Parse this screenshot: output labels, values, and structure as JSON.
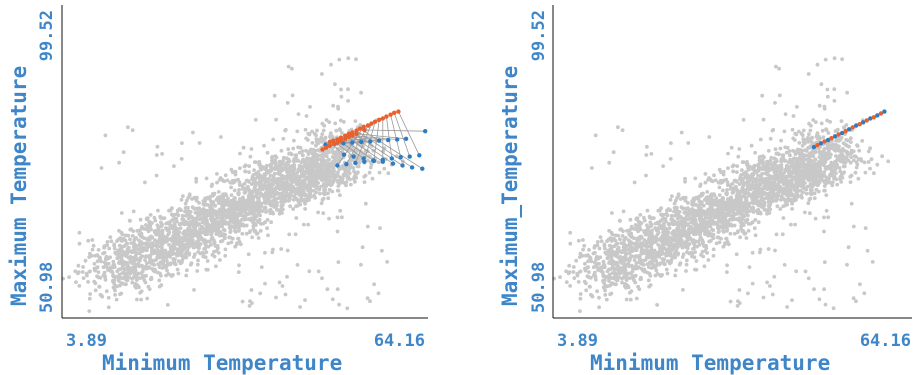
{
  "colors": {
    "background_points": "#c8c8c8",
    "original_points": "#2f7cc3",
    "moved_points": "#e8612c",
    "link_lines": "#9a9a9a",
    "label_text": "#3f86c9",
    "axis_line": "#111111"
  },
  "chart_data": [
    {
      "type": "scatter",
      "panel": "left",
      "xlabel": "Minimum Temperature",
      "ylabel": "Maximum Temperature",
      "x_ticks": [
        "3.89",
        "64.16"
      ],
      "y_ticks": [
        "50.98",
        "99.52"
      ],
      "xlim": [
        3.89,
        64.16
      ],
      "ylim": [
        50.98,
        99.52
      ],
      "grid": false,
      "background_series": {
        "name": "",
        "approx_count": 2500,
        "shape": "dense cloud along diagonal, x ~ 4-64, y ~ 51-99"
      },
      "highlight_pairs": [
        {
          "from": [
            50.6,
            76.4
          ],
          "to": [
            48.2,
            78.4
          ]
        },
        {
          "from": [
            52.2,
            76.1
          ],
          "to": [
            48.8,
            78.6
          ]
        },
        {
          "from": [
            53.9,
            75.8
          ],
          "to": [
            49.5,
            78.8
          ]
        },
        {
          "from": [
            55.5,
            75.5
          ],
          "to": [
            50.1,
            79.1
          ]
        },
        {
          "from": [
            57.1,
            75.3
          ],
          "to": [
            50.8,
            79.4
          ]
        },
        {
          "from": [
            58.8,
            75.0
          ],
          "to": [
            51.4,
            79.7
          ]
        },
        {
          "from": [
            60.4,
            74.7
          ],
          "to": [
            52.0,
            79.9
          ]
        },
        {
          "from": [
            62.0,
            74.4
          ],
          "to": [
            52.7,
            80.2
          ]
        },
        {
          "from": [
            63.7,
            74.2
          ],
          "to": [
            53.3,
            80.5
          ]
        },
        {
          "from": [
            49.5,
            74.7
          ],
          "to": [
            53.9,
            80.8
          ]
        },
        {
          "from": [
            51.0,
            74.9
          ],
          "to": [
            54.6,
            81.0
          ]
        },
        {
          "from": [
            52.5,
            75.1
          ],
          "to": [
            55.2,
            81.3
          ]
        },
        {
          "from": [
            54.0,
            75.3
          ],
          "to": [
            55.8,
            81.6
          ]
        },
        {
          "from": [
            55.6,
            75.4
          ],
          "to": [
            56.5,
            81.9
          ]
        },
        {
          "from": [
            57.1,
            75.6
          ],
          "to": [
            57.1,
            82.1
          ]
        },
        {
          "from": [
            58.6,
            75.8
          ],
          "to": [
            57.7,
            82.4
          ]
        },
        {
          "from": [
            60.1,
            76.0
          ],
          "to": [
            58.4,
            82.7
          ]
        },
        {
          "from": [
            61.6,
            76.1
          ],
          "to": [
            59.0,
            83.0
          ]
        },
        {
          "from": [
            63.2,
            76.3
          ],
          "to": [
            59.7,
            83.2
          ]
        },
        {
          "from": [
            47.5,
            78.0
          ],
          "to": [
            47.0,
            77.2
          ]
        },
        {
          "from": [
            49.0,
            78.1
          ],
          "to": [
            47.6,
            77.5
          ]
        },
        {
          "from": [
            50.5,
            78.2
          ],
          "to": [
            48.2,
            77.8
          ]
        },
        {
          "from": [
            52.0,
            78.3
          ],
          "to": [
            48.9,
            78.1
          ]
        },
        {
          "from": [
            53.5,
            78.4
          ],
          "to": [
            49.5,
            78.3
          ]
        },
        {
          "from": [
            55.0,
            78.5
          ],
          "to": [
            50.1,
            78.6
          ]
        },
        {
          "from": [
            56.5,
            78.6
          ],
          "to": [
            50.8,
            78.9
          ]
        },
        {
          "from": [
            58.0,
            78.7
          ],
          "to": [
            51.4,
            79.2
          ]
        },
        {
          "from": [
            59.5,
            78.8
          ],
          "to": [
            52.0,
            79.4
          ]
        },
        {
          "from": [
            61.0,
            78.9
          ],
          "to": [
            52.7,
            79.7
          ]
        },
        {
          "from": [
            64.2,
            80.1
          ],
          "to": [
            54.0,
            80.3
          ]
        }
      ]
    },
    {
      "type": "scatter",
      "panel": "right",
      "xlabel": "Minimum Temperature",
      "ylabel": "Maximum_Temperature",
      "x_ticks": [
        "3.89",
        "64.16"
      ],
      "y_ticks": [
        "50.98",
        "99.52"
      ],
      "xlim": [
        3.89,
        64.16
      ],
      "ylim": [
        50.98,
        99.52
      ],
      "grid": false,
      "background_series": {
        "name": "",
        "approx_count": 2500,
        "shape": "dense cloud along diagonal, x ~ 4-64, y ~ 51-99"
      },
      "highlight_points": [
        {
          "x": 47.8,
          "y": 77.6
        },
        {
          "x": 48.4,
          "y": 77.9
        },
        {
          "x": 49.0,
          "y": 78.2
        },
        {
          "x": 49.6,
          "y": 78.5
        },
        {
          "x": 50.2,
          "y": 78.7
        },
        {
          "x": 50.8,
          "y": 79.0
        },
        {
          "x": 51.4,
          "y": 79.3
        },
        {
          "x": 52.0,
          "y": 79.6
        },
        {
          "x": 52.6,
          "y": 79.8
        },
        {
          "x": 53.2,
          "y": 80.1
        },
        {
          "x": 53.8,
          "y": 80.4
        },
        {
          "x": 54.4,
          "y": 80.7
        },
        {
          "x": 55.0,
          "y": 81.0
        },
        {
          "x": 55.6,
          "y": 81.2
        },
        {
          "x": 56.2,
          "y": 81.5
        },
        {
          "x": 56.8,
          "y": 81.8
        },
        {
          "x": 57.4,
          "y": 82.1
        },
        {
          "x": 58.0,
          "y": 82.3
        },
        {
          "x": 58.6,
          "y": 82.6
        },
        {
          "x": 59.2,
          "y": 82.9
        },
        {
          "x": 59.8,
          "y": 83.2
        }
      ]
    }
  ]
}
